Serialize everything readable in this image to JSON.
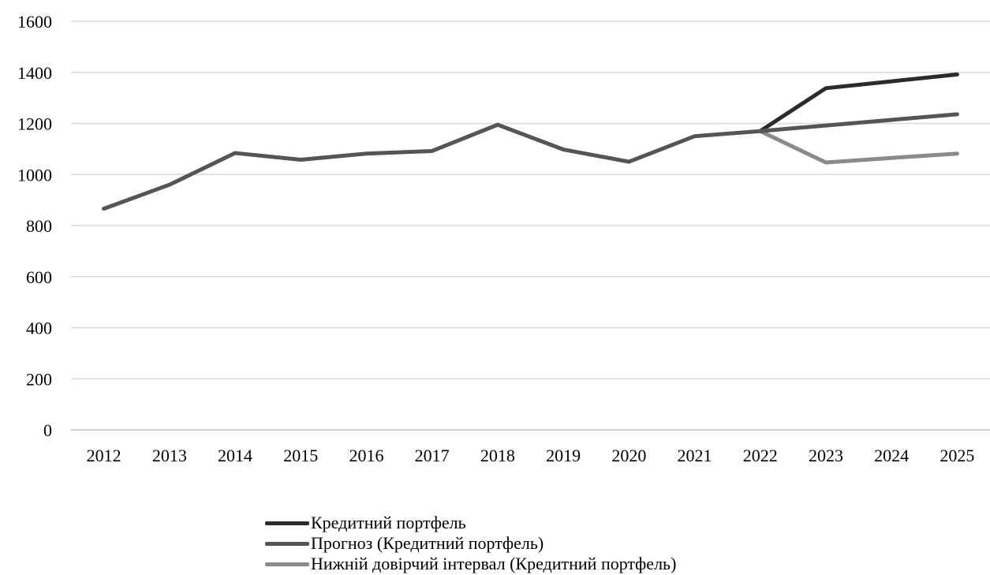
{
  "chart_data": {
    "type": "line",
    "categories": [
      "2012",
      "2013",
      "2014",
      "2015",
      "2016",
      "2017",
      "2018",
      "2019",
      "2020",
      "2021",
      "2022",
      "2023",
      "2024",
      "2025"
    ],
    "ylim": [
      0,
      1600
    ],
    "yticks": [
      0,
      200,
      400,
      600,
      800,
      1000,
      1200,
      1400,
      1600
    ],
    "grid": true,
    "legend_position": "bottom",
    "title": "",
    "xlabel": "",
    "ylabel": "",
    "series": [
      {
        "name": "Кредитний портфель",
        "color": "#2b2b2b",
        "values": [
          null,
          null,
          null,
          null,
          null,
          null,
          null,
          null,
          null,
          null,
          1170,
          1338,
          1365,
          1392
        ]
      },
      {
        "name": "Прогноз (Кредитний портфель)",
        "color": "#555555",
        "values": [
          866,
          960,
          1084,
          1058,
          1082,
          1092,
          1195,
          1098,
          1050,
          1150,
          1170,
          1192,
          1214,
          1236
        ]
      },
      {
        "name": "Нижній довірчий інтервал (Кредитний портфель)",
        "color": "#8a8a8a",
        "values": [
          null,
          null,
          null,
          null,
          null,
          null,
          null,
          null,
          null,
          null,
          1170,
          1047,
          1065,
          1082
        ]
      }
    ]
  }
}
